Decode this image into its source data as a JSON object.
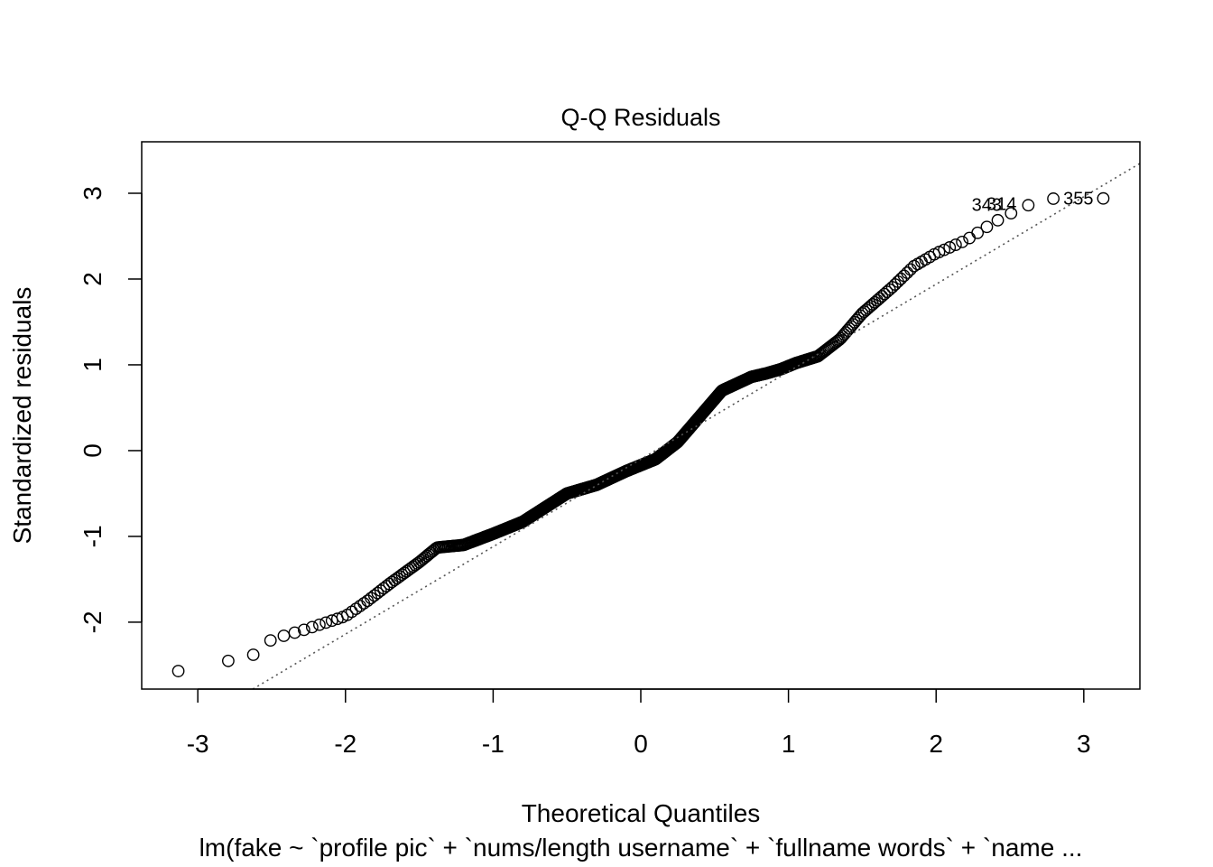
{
  "chart_data": {
    "type": "scatter",
    "title": "Q-Q Residuals",
    "xlabel": "Theoretical Quantiles",
    "ylabel": "Standardized residuals",
    "subtitle": "lm(fake ~ `profile pic` + `nums/length username` + `fullname words` + `name ...",
    "xlim": [
      -3.38,
      3.38
    ],
    "ylim": [
      -2.78,
      3.6
    ],
    "x_ticks": [
      "-3",
      "-2",
      "-1",
      "0",
      "1",
      "2",
      "3"
    ],
    "y_ticks": [
      "-2",
      "-1",
      "0",
      "1",
      "2",
      "3"
    ],
    "reference_line": {
      "slope": 1.02,
      "intercept": -0.1,
      "style": "dotted",
      "color": "#555555"
    },
    "marker": "open-circle",
    "grid": false,
    "legend": "none",
    "knots": [
      [
        -3.12,
        -2.57
      ],
      [
        -2.79,
        -2.45
      ],
      [
        -2.6,
        -2.37
      ],
      [
        -2.5,
        -2.2
      ],
      [
        -2.3,
        -2.1
      ],
      [
        -2.0,
        -1.93
      ],
      [
        -1.85,
        -1.75
      ],
      [
        -1.7,
        -1.55
      ],
      [
        -1.5,
        -1.3
      ],
      [
        -1.38,
        -1.13
      ],
      [
        -1.2,
        -1.1
      ],
      [
        -1.0,
        -0.97
      ],
      [
        -0.8,
        -0.83
      ],
      [
        -0.5,
        -0.5
      ],
      [
        -0.3,
        -0.4
      ],
      [
        -0.1,
        -0.24
      ],
      [
        0.1,
        -0.1
      ],
      [
        0.25,
        0.1
      ],
      [
        0.4,
        0.4
      ],
      [
        0.55,
        0.7
      ],
      [
        0.75,
        0.86
      ],
      [
        0.85,
        0.9
      ],
      [
        0.95,
        0.95
      ],
      [
        1.05,
        1.02
      ],
      [
        1.2,
        1.1
      ],
      [
        1.35,
        1.3
      ],
      [
        1.5,
        1.6
      ],
      [
        1.7,
        1.9
      ],
      [
        1.85,
        2.15
      ],
      [
        2.0,
        2.3
      ],
      [
        2.2,
        2.45
      ],
      [
        2.4,
        2.67
      ],
      [
        2.6,
        2.85
      ],
      [
        2.8,
        2.94
      ],
      [
        3.12,
        2.94
      ]
    ],
    "point_count": 576,
    "labeled_points": [
      {
        "label": "343",
        "x": 2.5,
        "y": 2.87
      },
      {
        "label": "314",
        "x": 2.6,
        "y": 2.88
      },
      {
        "label": "355",
        "x": 3.12,
        "y": 2.94
      }
    ]
  }
}
